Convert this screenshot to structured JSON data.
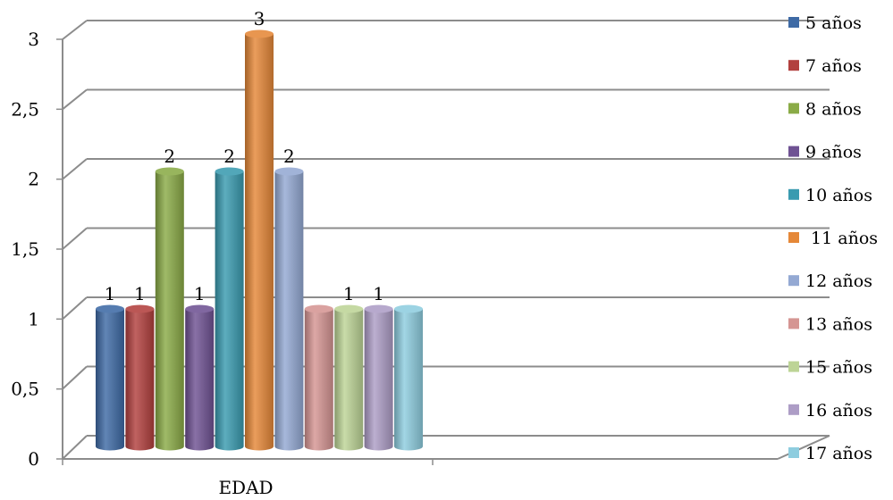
{
  "chart_data": {
    "type": "bar",
    "categories": [
      "EDAD"
    ],
    "xlabel": "EDAD",
    "ylabel": "",
    "title": "",
    "ylim": [
      0,
      3
    ],
    "yticks": [
      "0",
      "0,5",
      "1",
      "1,5",
      "2",
      "2,5",
      "3"
    ],
    "grid": true,
    "legend_position": "right",
    "series": [
      {
        "name": "5 años",
        "value": 1,
        "label": "1",
        "color": "#3e6aa5"
      },
      {
        "name": "7 años",
        "value": 1,
        "label": "1",
        "color": "#b2403e"
      },
      {
        "name": "8 años",
        "value": 2,
        "label": "2",
        "color": "#8aab47"
      },
      {
        "name": "9 años",
        "value": 1,
        "label": "1",
        "color": "#6f5293"
      },
      {
        "name": "10 años",
        "value": 2,
        "label": "2",
        "color": "#3a9bb0"
      },
      {
        "name": " 11 años",
        "value": 3,
        "label": "3",
        "color": "#e58838"
      },
      {
        "name": "12 años",
        "value": 2,
        "label": "2",
        "color": "#94a9d3"
      },
      {
        "name": "13 años",
        "value": 1,
        "label": "",
        "color": "#d59593"
      },
      {
        "name": "15 años",
        "value": 1,
        "label": "1",
        "color": "#bdd496"
      },
      {
        "name": "16 años",
        "value": 1,
        "label": "1",
        "color": "#ad9dc6"
      },
      {
        "name": "17 años",
        "value": 1,
        "label": "",
        "color": "#8ecddf"
      }
    ]
  }
}
